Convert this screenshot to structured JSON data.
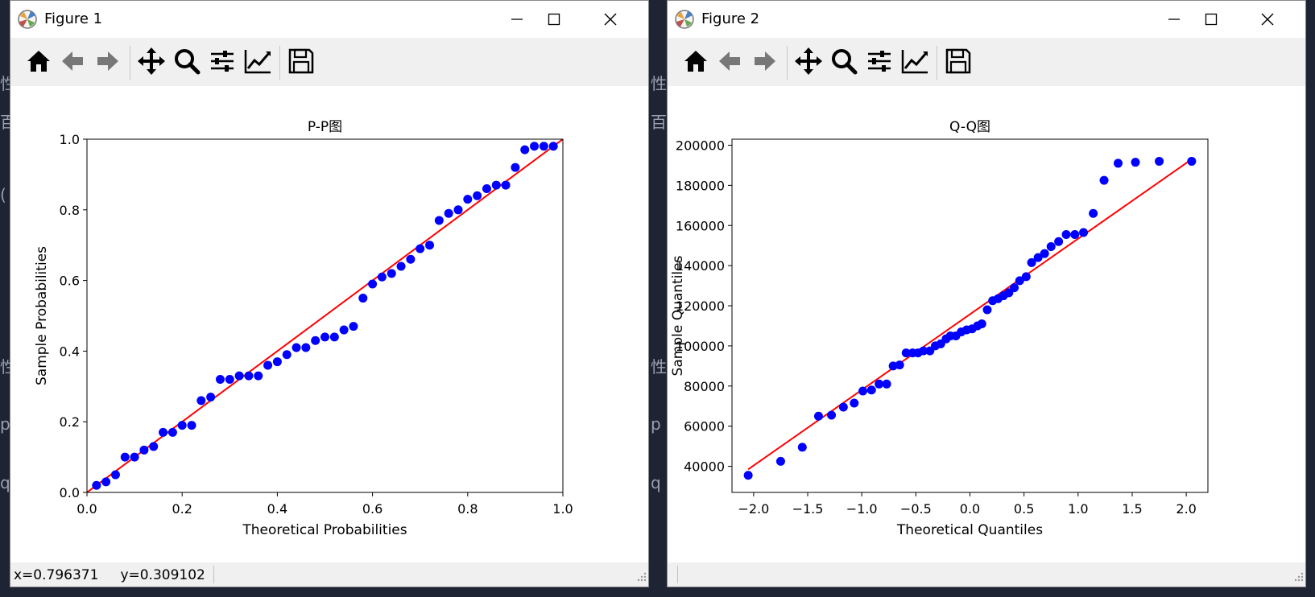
{
  "colors": {
    "points": "#0000ff",
    "line": "#ff0000",
    "titlebar": "#ffffff",
    "toolbar": "#f0f0f0"
  },
  "toolbar_icons": [
    "home-icon",
    "back-arrow-icon",
    "forward-arrow-icon",
    "pan-icon",
    "zoom-icon",
    "subplots-icon",
    "edit-axes-icon",
    "save-icon"
  ],
  "windows": [
    {
      "title": "Figure 1",
      "status": "x=0.796371     y=0.309102",
      "chart_data": {
        "type": "scatter",
        "title": "P-P图",
        "xlabel": "Theoretical Probabilities",
        "ylabel": "Sample Probabilities",
        "xlim": [
          0.0,
          1.0
        ],
        "ylim": [
          0.0,
          1.0
        ],
        "xticks": [
          "0.0",
          "0.2",
          "0.4",
          "0.6",
          "0.8",
          "1.0"
        ],
        "yticks": [
          "0.0",
          "0.2",
          "0.4",
          "0.6",
          "0.8",
          "1.0"
        ],
        "xtick_values": [
          0,
          0.2,
          0.4,
          0.6,
          0.8,
          1.0
        ],
        "ytick_values": [
          0,
          0.2,
          0.4,
          0.6,
          0.8,
          1.0
        ],
        "grid": false,
        "reference_line": [
          [
            0,
            0
          ],
          [
            1,
            1
          ]
        ],
        "x": [
          0.02,
          0.04,
          0.06,
          0.08,
          0.1,
          0.12,
          0.14,
          0.16,
          0.18,
          0.2,
          0.22,
          0.24,
          0.26,
          0.28,
          0.3,
          0.32,
          0.34,
          0.36,
          0.38,
          0.4,
          0.42,
          0.44,
          0.46,
          0.48,
          0.5,
          0.52,
          0.54,
          0.56,
          0.58,
          0.6,
          0.62,
          0.64,
          0.66,
          0.68,
          0.7,
          0.72,
          0.74,
          0.76,
          0.78,
          0.8,
          0.82,
          0.84,
          0.86,
          0.88,
          0.9,
          0.92,
          0.94,
          0.96,
          0.98
        ],
        "y": [
          0.02,
          0.03,
          0.05,
          0.1,
          0.1,
          0.12,
          0.13,
          0.17,
          0.17,
          0.19,
          0.19,
          0.26,
          0.27,
          0.32,
          0.32,
          0.33,
          0.33,
          0.33,
          0.36,
          0.37,
          0.39,
          0.41,
          0.41,
          0.43,
          0.44,
          0.44,
          0.46,
          0.47,
          0.55,
          0.59,
          0.61,
          0.62,
          0.64,
          0.66,
          0.69,
          0.7,
          0.77,
          0.79,
          0.8,
          0.83,
          0.84,
          0.86,
          0.87,
          0.87,
          0.92,
          0.97,
          0.98,
          0.98,
          0.98
        ]
      }
    },
    {
      "title": "Figure 2",
      "status": "",
      "chart_data": {
        "type": "scatter",
        "title": "Q-Q图",
        "xlabel": "Theoretical Quantiles",
        "ylabel": "Sample Quantiles",
        "xlim": [
          -2.2,
          2.2
        ],
        "ylim": [
          27000,
          203000
        ],
        "xticks": [
          "−2.0",
          "−1.5",
          "−1.0",
          "−0.5",
          "0.0",
          "0.5",
          "1.0",
          "1.5",
          "2.0"
        ],
        "yticks": [
          "40000",
          "60000",
          "80000",
          "100000",
          "120000",
          "140000",
          "160000",
          "180000",
          "200000"
        ],
        "xtick_values": [
          -2.0,
          -1.5,
          -1.0,
          -0.5,
          0.0,
          0.5,
          1.0,
          1.5,
          2.0
        ],
        "ytick_values": [
          40000,
          60000,
          80000,
          100000,
          120000,
          140000,
          160000,
          180000,
          200000
        ],
        "grid": false,
        "reference_line": [
          [
            -2.05,
            38500
          ],
          [
            2.05,
            193000
          ]
        ],
        "x": [
          -2.05,
          -1.75,
          -1.55,
          -1.4,
          -1.28,
          -1.17,
          -1.07,
          -0.99,
          -0.91,
          -0.84,
          -0.77,
          -0.71,
          -0.65,
          -0.59,
          -0.53,
          -0.48,
          -0.43,
          -0.37,
          -0.32,
          -0.27,
          -0.22,
          -0.18,
          -0.13,
          -0.08,
          -0.03,
          0.02,
          0.07,
          0.11,
          0.16,
          0.21,
          0.26,
          0.31,
          0.36,
          0.41,
          0.46,
          0.52,
          0.57,
          0.63,
          0.69,
          0.75,
          0.82,
          0.89,
          0.97,
          1.05,
          1.14,
          1.24,
          1.37,
          1.53,
          1.75,
          2.05
        ],
        "y": [
          35500,
          42500,
          49500,
          65000,
          65500,
          69500,
          71500,
          77500,
          78000,
          81000,
          81000,
          90000,
          90500,
          96500,
          96500,
          96500,
          97500,
          97500,
          100000,
          101000,
          103500,
          105000,
          105000,
          107000,
          108000,
          108500,
          110000,
          111000,
          118000,
          122500,
          123500,
          125000,
          126500,
          129000,
          132500,
          134500,
          141500,
          144000,
          146000,
          149500,
          152000,
          155500,
          155500,
          156500,
          166000,
          182500,
          191000,
          191500,
          192000,
          192000
        ]
      }
    }
  ]
}
